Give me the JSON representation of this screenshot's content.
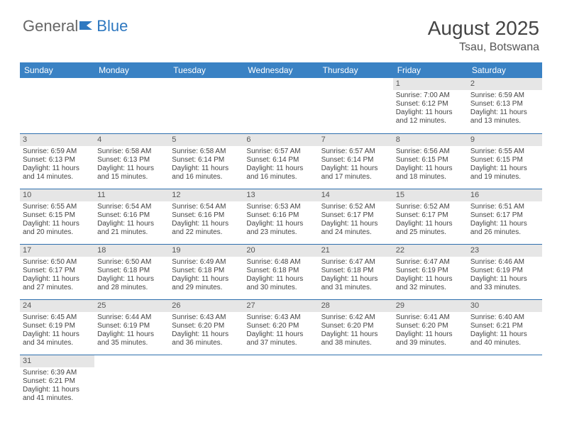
{
  "brand": {
    "part1": "General",
    "part2": "Blue"
  },
  "title": "August 2025",
  "location": "Tsau, Botswana",
  "colors": {
    "header_bg": "#3a82c4",
    "header_text": "#ffffff",
    "daybar_bg": "#e6e6e6",
    "border": "#2e6fae",
    "text": "#444444",
    "brand_blue": "#2e78c0",
    "brand_gray": "#666666"
  },
  "weekdays": [
    "Sunday",
    "Monday",
    "Tuesday",
    "Wednesday",
    "Thursday",
    "Friday",
    "Saturday"
  ],
  "weeks": [
    [
      {
        "d": "",
        "sr": "",
        "ss": "",
        "dl": ""
      },
      {
        "d": "",
        "sr": "",
        "ss": "",
        "dl": ""
      },
      {
        "d": "",
        "sr": "",
        "ss": "",
        "dl": ""
      },
      {
        "d": "",
        "sr": "",
        "ss": "",
        "dl": ""
      },
      {
        "d": "",
        "sr": "",
        "ss": "",
        "dl": ""
      },
      {
        "d": "1",
        "sr": "Sunrise: 7:00 AM",
        "ss": "Sunset: 6:12 PM",
        "dl": "Daylight: 11 hours and 12 minutes."
      },
      {
        "d": "2",
        "sr": "Sunrise: 6:59 AM",
        "ss": "Sunset: 6:13 PM",
        "dl": "Daylight: 11 hours and 13 minutes."
      }
    ],
    [
      {
        "d": "3",
        "sr": "Sunrise: 6:59 AM",
        "ss": "Sunset: 6:13 PM",
        "dl": "Daylight: 11 hours and 14 minutes."
      },
      {
        "d": "4",
        "sr": "Sunrise: 6:58 AM",
        "ss": "Sunset: 6:13 PM",
        "dl": "Daylight: 11 hours and 15 minutes."
      },
      {
        "d": "5",
        "sr": "Sunrise: 6:58 AM",
        "ss": "Sunset: 6:14 PM",
        "dl": "Daylight: 11 hours and 16 minutes."
      },
      {
        "d": "6",
        "sr": "Sunrise: 6:57 AM",
        "ss": "Sunset: 6:14 PM",
        "dl": "Daylight: 11 hours and 16 minutes."
      },
      {
        "d": "7",
        "sr": "Sunrise: 6:57 AM",
        "ss": "Sunset: 6:14 PM",
        "dl": "Daylight: 11 hours and 17 minutes."
      },
      {
        "d": "8",
        "sr": "Sunrise: 6:56 AM",
        "ss": "Sunset: 6:15 PM",
        "dl": "Daylight: 11 hours and 18 minutes."
      },
      {
        "d": "9",
        "sr": "Sunrise: 6:55 AM",
        "ss": "Sunset: 6:15 PM",
        "dl": "Daylight: 11 hours and 19 minutes."
      }
    ],
    [
      {
        "d": "10",
        "sr": "Sunrise: 6:55 AM",
        "ss": "Sunset: 6:15 PM",
        "dl": "Daylight: 11 hours and 20 minutes."
      },
      {
        "d": "11",
        "sr": "Sunrise: 6:54 AM",
        "ss": "Sunset: 6:16 PM",
        "dl": "Daylight: 11 hours and 21 minutes."
      },
      {
        "d": "12",
        "sr": "Sunrise: 6:54 AM",
        "ss": "Sunset: 6:16 PM",
        "dl": "Daylight: 11 hours and 22 minutes."
      },
      {
        "d": "13",
        "sr": "Sunrise: 6:53 AM",
        "ss": "Sunset: 6:16 PM",
        "dl": "Daylight: 11 hours and 23 minutes."
      },
      {
        "d": "14",
        "sr": "Sunrise: 6:52 AM",
        "ss": "Sunset: 6:17 PM",
        "dl": "Daylight: 11 hours and 24 minutes."
      },
      {
        "d": "15",
        "sr": "Sunrise: 6:52 AM",
        "ss": "Sunset: 6:17 PM",
        "dl": "Daylight: 11 hours and 25 minutes."
      },
      {
        "d": "16",
        "sr": "Sunrise: 6:51 AM",
        "ss": "Sunset: 6:17 PM",
        "dl": "Daylight: 11 hours and 26 minutes."
      }
    ],
    [
      {
        "d": "17",
        "sr": "Sunrise: 6:50 AM",
        "ss": "Sunset: 6:17 PM",
        "dl": "Daylight: 11 hours and 27 minutes."
      },
      {
        "d": "18",
        "sr": "Sunrise: 6:50 AM",
        "ss": "Sunset: 6:18 PM",
        "dl": "Daylight: 11 hours and 28 minutes."
      },
      {
        "d": "19",
        "sr": "Sunrise: 6:49 AM",
        "ss": "Sunset: 6:18 PM",
        "dl": "Daylight: 11 hours and 29 minutes."
      },
      {
        "d": "20",
        "sr": "Sunrise: 6:48 AM",
        "ss": "Sunset: 6:18 PM",
        "dl": "Daylight: 11 hours and 30 minutes."
      },
      {
        "d": "21",
        "sr": "Sunrise: 6:47 AM",
        "ss": "Sunset: 6:18 PM",
        "dl": "Daylight: 11 hours and 31 minutes."
      },
      {
        "d": "22",
        "sr": "Sunrise: 6:47 AM",
        "ss": "Sunset: 6:19 PM",
        "dl": "Daylight: 11 hours and 32 minutes."
      },
      {
        "d": "23",
        "sr": "Sunrise: 6:46 AM",
        "ss": "Sunset: 6:19 PM",
        "dl": "Daylight: 11 hours and 33 minutes."
      }
    ],
    [
      {
        "d": "24",
        "sr": "Sunrise: 6:45 AM",
        "ss": "Sunset: 6:19 PM",
        "dl": "Daylight: 11 hours and 34 minutes."
      },
      {
        "d": "25",
        "sr": "Sunrise: 6:44 AM",
        "ss": "Sunset: 6:19 PM",
        "dl": "Daylight: 11 hours and 35 minutes."
      },
      {
        "d": "26",
        "sr": "Sunrise: 6:43 AM",
        "ss": "Sunset: 6:20 PM",
        "dl": "Daylight: 11 hours and 36 minutes."
      },
      {
        "d": "27",
        "sr": "Sunrise: 6:43 AM",
        "ss": "Sunset: 6:20 PM",
        "dl": "Daylight: 11 hours and 37 minutes."
      },
      {
        "d": "28",
        "sr": "Sunrise: 6:42 AM",
        "ss": "Sunset: 6:20 PM",
        "dl": "Daylight: 11 hours and 38 minutes."
      },
      {
        "d": "29",
        "sr": "Sunrise: 6:41 AM",
        "ss": "Sunset: 6:20 PM",
        "dl": "Daylight: 11 hours and 39 minutes."
      },
      {
        "d": "30",
        "sr": "Sunrise: 6:40 AM",
        "ss": "Sunset: 6:21 PM",
        "dl": "Daylight: 11 hours and 40 minutes."
      }
    ],
    [
      {
        "d": "31",
        "sr": "Sunrise: 6:39 AM",
        "ss": "Sunset: 6:21 PM",
        "dl": "Daylight: 11 hours and 41 minutes."
      },
      {
        "d": "",
        "sr": "",
        "ss": "",
        "dl": ""
      },
      {
        "d": "",
        "sr": "",
        "ss": "",
        "dl": ""
      },
      {
        "d": "",
        "sr": "",
        "ss": "",
        "dl": ""
      },
      {
        "d": "",
        "sr": "",
        "ss": "",
        "dl": ""
      },
      {
        "d": "",
        "sr": "",
        "ss": "",
        "dl": ""
      },
      {
        "d": "",
        "sr": "",
        "ss": "",
        "dl": ""
      }
    ]
  ]
}
